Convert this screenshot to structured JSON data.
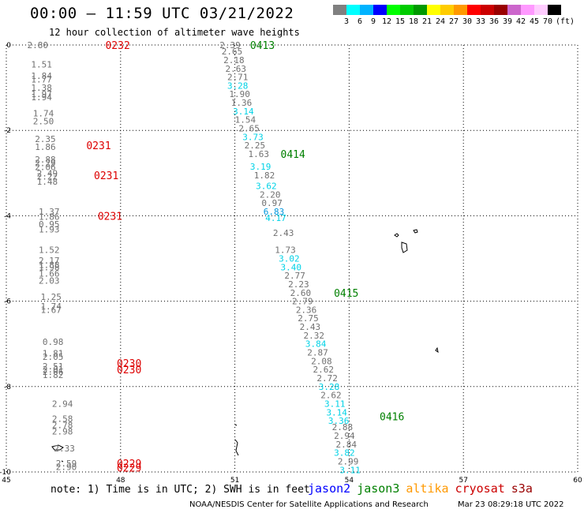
{
  "header": {
    "title": "00:00 — 11:59 UTC 03/21/2022",
    "subtitle": "12 hour collection of altimeter wave heights"
  },
  "legend": {
    "colors": [
      "#808080",
      "#00ffff",
      "#00b3ff",
      "#0000ff",
      "#00ff00",
      "#00cc00",
      "#009900",
      "#ffff00",
      "#ffcc00",
      "#ff9900",
      "#ff0000",
      "#cc0000",
      "#990000",
      "#cc66cc",
      "#ff99ff",
      "#ffccff",
      "#000000"
    ],
    "ticks": [
      "3",
      "6",
      "9",
      "12",
      "15",
      "18",
      "21",
      "24",
      "27",
      "30",
      "33",
      "36",
      "39",
      "42",
      "45",
      "70"
    ],
    "unit": "(ft)"
  },
  "map_data": {
    "lon_range": [
      45,
      60
    ],
    "lat_range": [
      -10,
      0
    ],
    "lon_ticks": [
      45,
      48,
      51,
      54,
      57,
      60
    ],
    "lat_ticks": [
      0,
      -2,
      -4,
      -6,
      -8,
      -10
    ],
    "lon_labels": [
      "45",
      "48",
      "51",
      "54",
      "57",
      "60"
    ],
    "lat_labels": [
      "0",
      "-2",
      "-4",
      "-6",
      "-8",
      "-10"
    ],
    "swh_palette": {
      "gray": "#707070",
      "cyan": "#00d2e6",
      "blue": "#0096dc"
    },
    "time_color_green": "#008000",
    "time_color_red": "#dd0000",
    "track_west": {
      "times": [
        {
          "label": "0232",
          "lon": 47.6,
          "lat": 0.0
        },
        {
          "label": "0231",
          "lon": 47.1,
          "lat": -2.35
        },
        {
          "label": "0231",
          "lon": 47.3,
          "lat": -3.05
        },
        {
          "label": "0231",
          "lon": 47.4,
          "lat": -4.0
        },
        {
          "label": "0230",
          "lon": 47.9,
          "lat": -7.45
        },
        {
          "label": "0230",
          "lon": 47.9,
          "lat": -7.6
        },
        {
          "label": "0229",
          "lon": 47.9,
          "lat": -9.8
        },
        {
          "label": "0229",
          "lon": 47.9,
          "lat": -9.9
        }
      ],
      "points": [
        {
          "v": "2.80",
          "lon": 45.55,
          "lat": 0.0,
          "c": "gray"
        },
        {
          "v": "1.51",
          "lon": 45.65,
          "lat": -0.45,
          "c": "gray"
        },
        {
          "v": "1.84",
          "lon": 45.65,
          "lat": -0.72,
          "c": "gray"
        },
        {
          "v": "1.77",
          "lon": 45.65,
          "lat": -0.8,
          "c": "gray"
        },
        {
          "v": "1.38",
          "lon": 45.65,
          "lat": -1.0,
          "c": "gray"
        },
        {
          "v": "1.97",
          "lon": 45.65,
          "lat": -1.15,
          "c": "gray"
        },
        {
          "v": "1.94",
          "lon": 45.65,
          "lat": -1.22,
          "c": "gray"
        },
        {
          "v": "1.74",
          "lon": 45.7,
          "lat": -1.6,
          "c": "gray"
        },
        {
          "v": "2.50",
          "lon": 45.7,
          "lat": -1.78,
          "c": "gray"
        },
        {
          "v": "2.35",
          "lon": 45.75,
          "lat": -2.2,
          "c": "gray"
        },
        {
          "v": "1.86",
          "lon": 45.75,
          "lat": -2.38,
          "c": "gray"
        },
        {
          "v": "2.88",
          "lon": 45.75,
          "lat": -2.68,
          "c": "gray"
        },
        {
          "v": "2.29",
          "lon": 45.75,
          "lat": -2.76,
          "c": "gray"
        },
        {
          "v": "2.06",
          "lon": 45.75,
          "lat": -2.86,
          "c": "gray"
        },
        {
          "v": "2.49",
          "lon": 45.8,
          "lat": -3.0,
          "c": "gray"
        },
        {
          "v": "2.22",
          "lon": 45.8,
          "lat": -3.08,
          "c": "gray"
        },
        {
          "v": "1.48",
          "lon": 45.8,
          "lat": -3.2,
          "c": "gray"
        },
        {
          "v": "1.37",
          "lon": 45.85,
          "lat": -3.9,
          "c": "gray"
        },
        {
          "v": "1.86",
          "lon": 45.85,
          "lat": -4.02,
          "c": "gray"
        },
        {
          "v": "0.95",
          "lon": 45.85,
          "lat": -4.2,
          "c": "gray"
        },
        {
          "v": "1.93",
          "lon": 45.85,
          "lat": -4.32,
          "c": "gray"
        },
        {
          "v": "1.52",
          "lon": 45.85,
          "lat": -4.8,
          "c": "gray"
        },
        {
          "v": "2.17",
          "lon": 45.85,
          "lat": -5.05,
          "c": "gray"
        },
        {
          "v": "1.88",
          "lon": 45.85,
          "lat": -5.15,
          "c": "gray"
        },
        {
          "v": "1.98",
          "lon": 45.85,
          "lat": -5.2,
          "c": "gray"
        },
        {
          "v": "1.66",
          "lon": 45.85,
          "lat": -5.35,
          "c": "gray"
        },
        {
          "v": "2.03",
          "lon": 45.85,
          "lat": -5.52,
          "c": "gray"
        },
        {
          "v": "1.25",
          "lon": 45.9,
          "lat": -5.9,
          "c": "gray"
        },
        {
          "v": "1.74",
          "lon": 45.9,
          "lat": -6.12,
          "c": "gray"
        },
        {
          "v": "1.67",
          "lon": 45.9,
          "lat": -6.2,
          "c": "gray"
        },
        {
          "v": "0.98",
          "lon": 45.95,
          "lat": -6.95,
          "c": "gray"
        },
        {
          "v": "1.81",
          "lon": 45.95,
          "lat": -7.22,
          "c": "gray"
        },
        {
          "v": "2.05",
          "lon": 45.95,
          "lat": -7.3,
          "c": "gray"
        },
        {
          "v": "2.51",
          "lon": 45.95,
          "lat": -7.52,
          "c": "gray"
        },
        {
          "v": "2.01",
          "lon": 45.95,
          "lat": -7.6,
          "c": "gray"
        },
        {
          "v": "2.06",
          "lon": 45.95,
          "lat": -7.65,
          "c": "gray"
        },
        {
          "v": "1.82",
          "lon": 45.95,
          "lat": -7.73,
          "c": "gray"
        },
        {
          "v": "2.94",
          "lon": 46.2,
          "lat": -8.4,
          "c": "gray"
        },
        {
          "v": "2.58",
          "lon": 46.2,
          "lat": -8.75,
          "c": "gray"
        },
        {
          "v": "2.78",
          "lon": 46.2,
          "lat": -8.9,
          "c": "gray"
        },
        {
          "v": "2.98",
          "lon": 46.2,
          "lat": -9.05,
          "c": "gray"
        },
        {
          "v": "2.33",
          "lon": 46.25,
          "lat": -9.45,
          "c": "gray"
        },
        {
          "v": "2.59",
          "lon": 46.3,
          "lat": -9.8,
          "c": "gray"
        },
        {
          "v": "2.90",
          "lon": 46.3,
          "lat": -9.88,
          "c": "gray"
        }
      ]
    },
    "track_east": {
      "times": [
        {
          "label": "0413",
          "lon": 51.4,
          "lat": 0.0
        },
        {
          "label": "0414",
          "lon": 52.2,
          "lat": -2.55
        },
        {
          "label": "0415",
          "lon": 53.6,
          "lat": -5.8
        },
        {
          "label": "0416",
          "lon": 54.8,
          "lat": -8.7
        }
      ],
      "points": [
        {
          "v": "2.39",
          "lon": 50.6,
          "lat": 0.0,
          "c": "gray"
        },
        {
          "v": "2.65",
          "lon": 50.65,
          "lat": -0.15,
          "c": "gray"
        },
        {
          "v": "2.18",
          "lon": 50.7,
          "lat": -0.35,
          "c": "gray"
        },
        {
          "v": "2.63",
          "lon": 50.75,
          "lat": -0.55,
          "c": "gray"
        },
        {
          "v": "2.71",
          "lon": 50.8,
          "lat": -0.75,
          "c": "gray"
        },
        {
          "v": "3.28",
          "lon": 50.8,
          "lat": -0.95,
          "c": "cyan"
        },
        {
          "v": "1.90",
          "lon": 50.85,
          "lat": -1.15,
          "c": "gray"
        },
        {
          "v": "1.36",
          "lon": 50.9,
          "lat": -1.35,
          "c": "gray"
        },
        {
          "v": "3.14",
          "lon": 50.95,
          "lat": -1.55,
          "c": "cyan"
        },
        {
          "v": "1.54",
          "lon": 51.0,
          "lat": -1.75,
          "c": "gray"
        },
        {
          "v": "2.65",
          "lon": 51.1,
          "lat": -1.95,
          "c": "gray"
        },
        {
          "v": "3.73",
          "lon": 51.2,
          "lat": -2.15,
          "c": "cyan"
        },
        {
          "v": "2.25",
          "lon": 51.25,
          "lat": -2.35,
          "c": "gray"
        },
        {
          "v": "1.63",
          "lon": 51.35,
          "lat": -2.55,
          "c": "gray"
        },
        {
          "v": "3.19",
          "lon": 51.4,
          "lat": -2.85,
          "c": "cyan"
        },
        {
          "v": "1.82",
          "lon": 51.5,
          "lat": -3.05,
          "c": "gray"
        },
        {
          "v": "3.62",
          "lon": 51.55,
          "lat": -3.3,
          "c": "cyan"
        },
        {
          "v": "2.20",
          "lon": 51.65,
          "lat": -3.5,
          "c": "gray"
        },
        {
          "v": "0.97",
          "lon": 51.7,
          "lat": -3.7,
          "c": "gray"
        },
        {
          "v": "6.83",
          "lon": 51.75,
          "lat": -3.9,
          "c": "blue"
        },
        {
          "v": "4.17",
          "lon": 51.8,
          "lat": -4.05,
          "c": "cyan"
        },
        {
          "v": "2.43",
          "lon": 52.0,
          "lat": -4.4,
          "c": "gray"
        },
        {
          "v": "1.73",
          "lon": 52.05,
          "lat": -4.8,
          "c": "gray"
        },
        {
          "v": "3.02",
          "lon": 52.15,
          "lat": -5.0,
          "c": "cyan"
        },
        {
          "v": "3.40",
          "lon": 52.2,
          "lat": -5.2,
          "c": "cyan"
        },
        {
          "v": "2.77",
          "lon": 52.3,
          "lat": -5.4,
          "c": "gray"
        },
        {
          "v": "2.23",
          "lon": 52.4,
          "lat": -5.6,
          "c": "gray"
        },
        {
          "v": "2.60",
          "lon": 52.45,
          "lat": -5.8,
          "c": "gray"
        },
        {
          "v": "2.79",
          "lon": 52.5,
          "lat": -6.0,
          "c": "gray"
        },
        {
          "v": "2.36",
          "lon": 52.6,
          "lat": -6.2,
          "c": "gray"
        },
        {
          "v": "2.75",
          "lon": 52.65,
          "lat": -6.4,
          "c": "gray"
        },
        {
          "v": "2.43",
          "lon": 52.7,
          "lat": -6.6,
          "c": "gray"
        },
        {
          "v": "2.32",
          "lon": 52.8,
          "lat": -6.8,
          "c": "gray"
        },
        {
          "v": "3.84",
          "lon": 52.85,
          "lat": -7.0,
          "c": "cyan"
        },
        {
          "v": "2.87",
          "lon": 52.9,
          "lat": -7.2,
          "c": "gray"
        },
        {
          "v": "2.08",
          "lon": 53.0,
          "lat": -7.4,
          "c": "gray"
        },
        {
          "v": "2.62",
          "lon": 53.05,
          "lat": -7.6,
          "c": "gray"
        },
        {
          "v": "2.72",
          "lon": 53.15,
          "lat": -7.8,
          "c": "gray"
        },
        {
          "v": "3.28",
          "lon": 53.2,
          "lat": -8.0,
          "c": "cyan"
        },
        {
          "v": "2.62",
          "lon": 53.25,
          "lat": -8.2,
          "c": "gray"
        },
        {
          "v": "3.11",
          "lon": 53.35,
          "lat": -8.4,
          "c": "cyan"
        },
        {
          "v": "3.14",
          "lon": 53.4,
          "lat": -8.6,
          "c": "cyan"
        },
        {
          "v": "3.36",
          "lon": 53.45,
          "lat": -8.8,
          "c": "cyan"
        },
        {
          "v": "2.88",
          "lon": 53.55,
          "lat": -8.95,
          "c": "gray"
        },
        {
          "v": "2.94",
          "lon": 53.6,
          "lat": -9.15,
          "c": "gray"
        },
        {
          "v": "2.84",
          "lon": 53.65,
          "lat": -9.35,
          "c": "gray"
        },
        {
          "v": "3.82",
          "lon": 53.6,
          "lat": -9.55,
          "c": "cyan"
        },
        {
          "v": "2.99",
          "lon": 53.7,
          "lat": -9.75,
          "c": "gray"
        },
        {
          "v": "3.11",
          "lon": 53.75,
          "lat": -9.95,
          "c": "cyan"
        }
      ]
    }
  },
  "footer": {
    "note": "note: 1) Time is in UTC; 2) SWH is in feet",
    "satellites": [
      {
        "name": "jason2",
        "color": "#0000ff"
      },
      {
        "name": "jason3",
        "color": "#008000"
      },
      {
        "name": "altika",
        "color": "#ff9900"
      },
      {
        "name": "cryosat",
        "color": "#cc0000"
      },
      {
        "name": "s3a",
        "color": "#990000"
      }
    ],
    "credit": "NOAA/NESDIS Center for Satellite Applications and Research",
    "timestamp": "Mar 23 08:29:18 UTC 2022"
  }
}
